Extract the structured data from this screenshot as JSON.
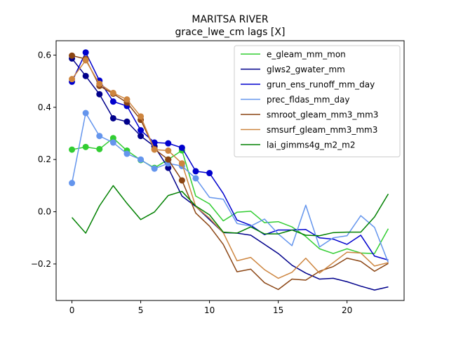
{
  "chart_data": {
    "type": "line",
    "title": "MARITSA RIVER",
    "subtitle": "grace_lwe_cm lags [X]",
    "xlabel": "",
    "ylabel": "",
    "xlim": [
      -1.15,
      24.15
    ],
    "ylim": [
      -0.34,
      0.655
    ],
    "x_ticks": [
      0,
      5,
      10,
      15,
      20
    ],
    "y_ticks": [
      -0.2,
      0.0,
      0.2,
      0.4,
      0.6
    ],
    "y_tick_labels": [
      "−0.2",
      "0.0",
      "0.2",
      "0.4",
      "0.6"
    ],
    "grid": false,
    "legend_position": "top-right",
    "x": [
      0,
      1,
      2,
      3,
      4,
      5,
      6,
      7,
      8,
      9,
      10,
      11,
      12,
      13,
      14,
      15,
      16,
      17,
      18,
      19,
      20,
      21,
      22,
      23
    ],
    "series": [
      {
        "name": "e_gleam_mm_mon",
        "color": "#32cd32",
        "values": [
          0.238,
          0.248,
          0.24,
          0.282,
          0.234,
          0.198,
          0.168,
          0.2,
          0.235,
          0.06,
          0.03,
          -0.035,
          -0.002,
          0.002,
          -0.042,
          -0.038,
          -0.058,
          -0.095,
          -0.142,
          -0.16,
          -0.142,
          -0.158,
          -0.16,
          -0.065
        ],
        "marker_count": 9
      },
      {
        "name": "glws2_gwater_mm",
        "color": "#00008b",
        "values": [
          0.587,
          0.52,
          0.45,
          0.358,
          0.345,
          0.29,
          0.25,
          0.168,
          0.06,
          0.02,
          -0.03,
          -0.08,
          -0.082,
          -0.09,
          -0.125,
          -0.16,
          -0.205,
          -0.235,
          -0.258,
          -0.255,
          -0.268,
          -0.285,
          -0.3,
          -0.288
        ],
        "marker_count": 8
      },
      {
        "name": "grun_ens_runoff_mm_day",
        "color": "#0000cd",
        "values": [
          0.498,
          0.61,
          0.502,
          0.422,
          0.405,
          0.312,
          0.265,
          0.262,
          0.245,
          0.155,
          0.148,
          0.07,
          -0.032,
          -0.052,
          -0.088,
          -0.07,
          -0.07,
          -0.068,
          -0.1,
          -0.105,
          -0.125,
          -0.09,
          -0.17,
          -0.185
        ],
        "marker_count": 11
      },
      {
        "name": "prec_fldas_mm_day",
        "color": "#6495ed",
        "values": [
          0.11,
          0.378,
          0.29,
          0.265,
          0.222,
          0.2,
          0.165,
          0.185,
          0.175,
          0.128,
          0.055,
          0.048,
          -0.045,
          -0.055,
          -0.028,
          -0.085,
          -0.13,
          0.025,
          -0.135,
          -0.1,
          -0.092,
          -0.015,
          -0.06,
          -0.195
        ],
        "marker_count": 10
      },
      {
        "name": "smroot_gleam_mm3_mm3",
        "color": "#8b4513",
        "values": [
          0.598,
          0.585,
          0.482,
          0.452,
          0.418,
          0.352,
          0.24,
          0.2,
          0.12,
          -0.005,
          -0.055,
          -0.125,
          -0.23,
          -0.22,
          -0.272,
          -0.298,
          -0.258,
          -0.262,
          -0.228,
          -0.21,
          -0.178,
          -0.19,
          -0.228,
          -0.198
        ],
        "marker_count": 9
      },
      {
        "name": "smsurf_gleam_mm3_mm3",
        "color": "#cd853f",
        "values": [
          0.508,
          0.58,
          0.49,
          0.455,
          0.43,
          0.365,
          0.238,
          0.234,
          0.185,
          0.02,
          -0.025,
          -0.08,
          -0.188,
          -0.175,
          -0.222,
          -0.255,
          -0.232,
          -0.178,
          -0.235,
          -0.195,
          -0.155,
          -0.158,
          -0.208,
          -0.195
        ],
        "marker_count": 9
      },
      {
        "name": "lai_gimms4g_m2_m2",
        "color": "#008000",
        "values": [
          -0.022,
          -0.082,
          0.022,
          0.1,
          0.032,
          -0.03,
          -0.001,
          0.062,
          0.078,
          0.022,
          -0.012,
          -0.078,
          -0.082,
          -0.058,
          -0.085,
          -0.085,
          -0.07,
          -0.09,
          -0.092,
          -0.08,
          -0.078,
          -0.078,
          -0.02,
          0.068
        ],
        "marker_count": 0
      }
    ]
  }
}
